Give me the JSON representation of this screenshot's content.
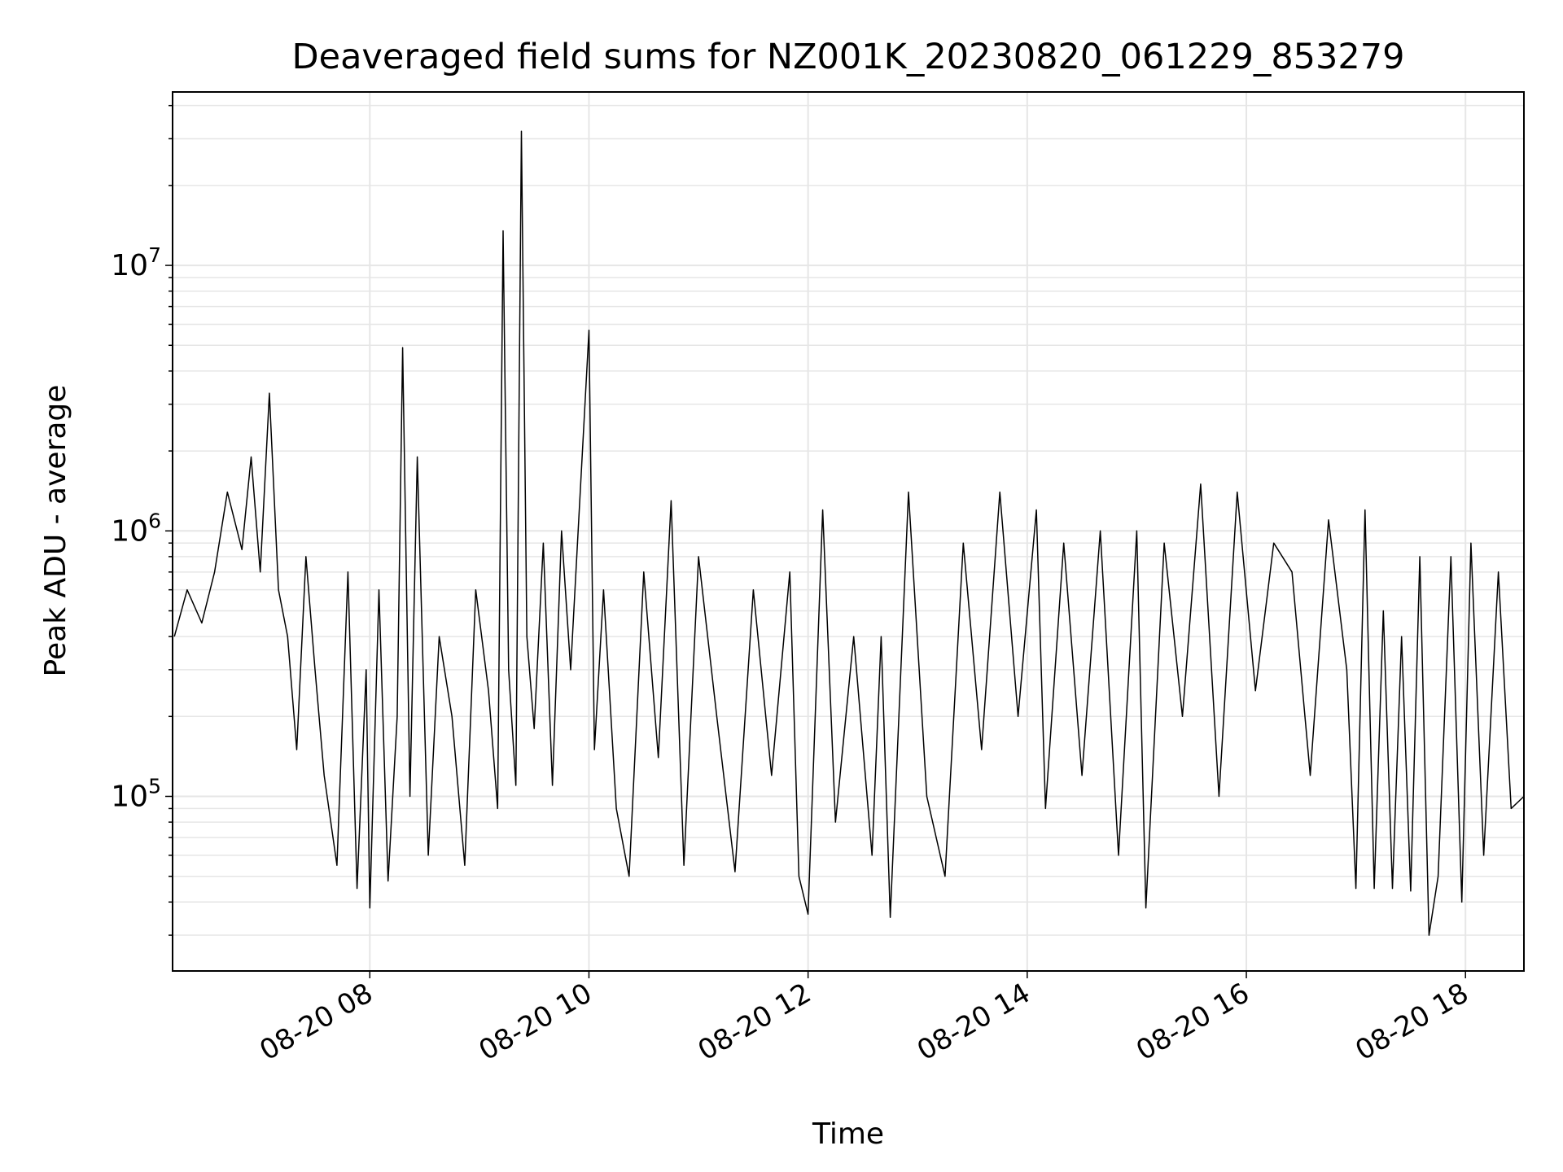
{
  "chart_data": {
    "type": "line",
    "title": "Deaveraged field sums for NZ001K_20230820_061229_853279",
    "xlabel": "Time",
    "ylabel": "Peak ADU - average",
    "x_range": [
      "2023-08-20 06:12",
      "2023-08-20 18:32"
    ],
    "ylim": [
      22000,
      45000000
    ],
    "yscale": "log",
    "grid": true,
    "x_ticks": [
      {
        "x": "2023-08-20 08:00",
        "label": "08-20 08"
      },
      {
        "x": "2023-08-20 10:00",
        "label": "08-20 10"
      },
      {
        "x": "2023-08-20 12:00",
        "label": "08-20 12"
      },
      {
        "x": "2023-08-20 14:00",
        "label": "08-20 14"
      },
      {
        "x": "2023-08-20 16:00",
        "label": "08-20 16"
      },
      {
        "x": "2023-08-20 18:00",
        "label": "08-20 18"
      }
    ],
    "y_ticks": [
      {
        "value": 100000,
        "base": "10",
        "exp": "5"
      },
      {
        "value": 1000000,
        "base": "10",
        "exp": "6"
      },
      {
        "value": 10000000,
        "base": "10",
        "exp": "7"
      }
    ],
    "series": [
      {
        "color": "#000000",
        "points": [
          [
            "2023-08-20 06:13",
            400000
          ],
          [
            "2023-08-20 06:20",
            600000
          ],
          [
            "2023-08-20 06:28",
            450000
          ],
          [
            "2023-08-20 06:35",
            700000
          ],
          [
            "2023-08-20 06:42",
            1400000
          ],
          [
            "2023-08-20 06:50",
            850000
          ],
          [
            "2023-08-20 06:55",
            1900000
          ],
          [
            "2023-08-20 07:00",
            700000
          ],
          [
            "2023-08-20 07:05",
            3300000
          ],
          [
            "2023-08-20 07:10",
            600000
          ],
          [
            "2023-08-20 07:15",
            400000
          ],
          [
            "2023-08-20 07:20",
            150000
          ],
          [
            "2023-08-20 07:25",
            800000
          ],
          [
            "2023-08-20 07:30",
            300000
          ],
          [
            "2023-08-20 07:35",
            120000
          ],
          [
            "2023-08-20 07:42",
            55000
          ],
          [
            "2023-08-20 07:48",
            700000
          ],
          [
            "2023-08-20 07:53",
            45000
          ],
          [
            "2023-08-20 07:58",
            300000
          ],
          [
            "2023-08-20 08:00",
            38000
          ],
          [
            "2023-08-20 08:05",
            600000
          ],
          [
            "2023-08-20 08:10",
            48000
          ],
          [
            "2023-08-20 08:15",
            200000
          ],
          [
            "2023-08-20 08:18",
            4900000
          ],
          [
            "2023-08-20 08:22",
            100000
          ],
          [
            "2023-08-20 08:26",
            1900000
          ],
          [
            "2023-08-20 08:32",
            60000
          ],
          [
            "2023-08-20 08:38",
            400000
          ],
          [
            "2023-08-20 08:45",
            200000
          ],
          [
            "2023-08-20 08:52",
            55000
          ],
          [
            "2023-08-20 08:58",
            600000
          ],
          [
            "2023-08-20 09:05",
            250000
          ],
          [
            "2023-08-20 09:10",
            90000
          ],
          [
            "2023-08-20 09:13",
            13500000
          ],
          [
            "2023-08-20 09:16",
            300000
          ],
          [
            "2023-08-20 09:20",
            110000
          ],
          [
            "2023-08-20 09:23",
            32000000
          ],
          [
            "2023-08-20 09:26",
            400000
          ],
          [
            "2023-08-20 09:30",
            180000
          ],
          [
            "2023-08-20 09:35",
            900000
          ],
          [
            "2023-08-20 09:40",
            110000
          ],
          [
            "2023-08-20 09:45",
            1000000
          ],
          [
            "2023-08-20 09:50",
            300000
          ],
          [
            "2023-08-20 09:55",
            1300000
          ],
          [
            "2023-08-20 10:00",
            5700000
          ],
          [
            "2023-08-20 10:03",
            150000
          ],
          [
            "2023-08-20 10:08",
            600000
          ],
          [
            "2023-08-20 10:15",
            90000
          ],
          [
            "2023-08-20 10:22",
            50000
          ],
          [
            "2023-08-20 10:30",
            700000
          ],
          [
            "2023-08-20 10:38",
            140000
          ],
          [
            "2023-08-20 10:45",
            1300000
          ],
          [
            "2023-08-20 10:52",
            55000
          ],
          [
            "2023-08-20 11:00",
            800000
          ],
          [
            "2023-08-20 11:10",
            200000
          ],
          [
            "2023-08-20 11:20",
            52000
          ],
          [
            "2023-08-20 11:30",
            600000
          ],
          [
            "2023-08-20 11:40",
            120000
          ],
          [
            "2023-08-20 11:50",
            700000
          ],
          [
            "2023-08-20 11:55",
            50000
          ],
          [
            "2023-08-20 12:00",
            36000
          ],
          [
            "2023-08-20 12:08",
            1200000
          ],
          [
            "2023-08-20 12:15",
            80000
          ],
          [
            "2023-08-20 12:25",
            400000
          ],
          [
            "2023-08-20 12:35",
            60000
          ],
          [
            "2023-08-20 12:40",
            400000
          ],
          [
            "2023-08-20 12:45",
            35000
          ],
          [
            "2023-08-20 12:55",
            1400000
          ],
          [
            "2023-08-20 13:05",
            100000
          ],
          [
            "2023-08-20 13:15",
            50000
          ],
          [
            "2023-08-20 13:25",
            900000
          ],
          [
            "2023-08-20 13:35",
            150000
          ],
          [
            "2023-08-20 13:45",
            1400000
          ],
          [
            "2023-08-20 13:55",
            200000
          ],
          [
            "2023-08-20 14:05",
            1200000
          ],
          [
            "2023-08-20 14:10",
            90000
          ],
          [
            "2023-08-20 14:20",
            900000
          ],
          [
            "2023-08-20 14:30",
            120000
          ],
          [
            "2023-08-20 14:40",
            1000000
          ],
          [
            "2023-08-20 14:50",
            60000
          ],
          [
            "2023-08-20 15:00",
            1000000
          ],
          [
            "2023-08-20 15:05",
            38000
          ],
          [
            "2023-08-20 15:15",
            900000
          ],
          [
            "2023-08-20 15:25",
            200000
          ],
          [
            "2023-08-20 15:35",
            1500000
          ],
          [
            "2023-08-20 15:45",
            100000
          ],
          [
            "2023-08-20 15:55",
            1400000
          ],
          [
            "2023-08-20 16:05",
            250000
          ],
          [
            "2023-08-20 16:15",
            900000
          ],
          [
            "2023-08-20 16:25",
            700000
          ],
          [
            "2023-08-20 16:35",
            120000
          ],
          [
            "2023-08-20 16:45",
            1100000
          ],
          [
            "2023-08-20 16:55",
            300000
          ],
          [
            "2023-08-20 17:00",
            45000
          ],
          [
            "2023-08-20 17:05",
            1200000
          ],
          [
            "2023-08-20 17:10",
            45000
          ],
          [
            "2023-08-20 17:15",
            500000
          ],
          [
            "2023-08-20 17:20",
            45000
          ],
          [
            "2023-08-20 17:25",
            400000
          ],
          [
            "2023-08-20 17:30",
            44000
          ],
          [
            "2023-08-20 17:35",
            800000
          ],
          [
            "2023-08-20 17:40",
            30000
          ],
          [
            "2023-08-20 17:45",
            50000
          ],
          [
            "2023-08-20 17:52",
            800000
          ],
          [
            "2023-08-20 17:58",
            40000
          ],
          [
            "2023-08-20 18:03",
            900000
          ],
          [
            "2023-08-20 18:10",
            60000
          ],
          [
            "2023-08-20 18:18",
            700000
          ],
          [
            "2023-08-20 18:25",
            90000
          ],
          [
            "2023-08-20 18:32",
            100000
          ]
        ]
      }
    ]
  }
}
